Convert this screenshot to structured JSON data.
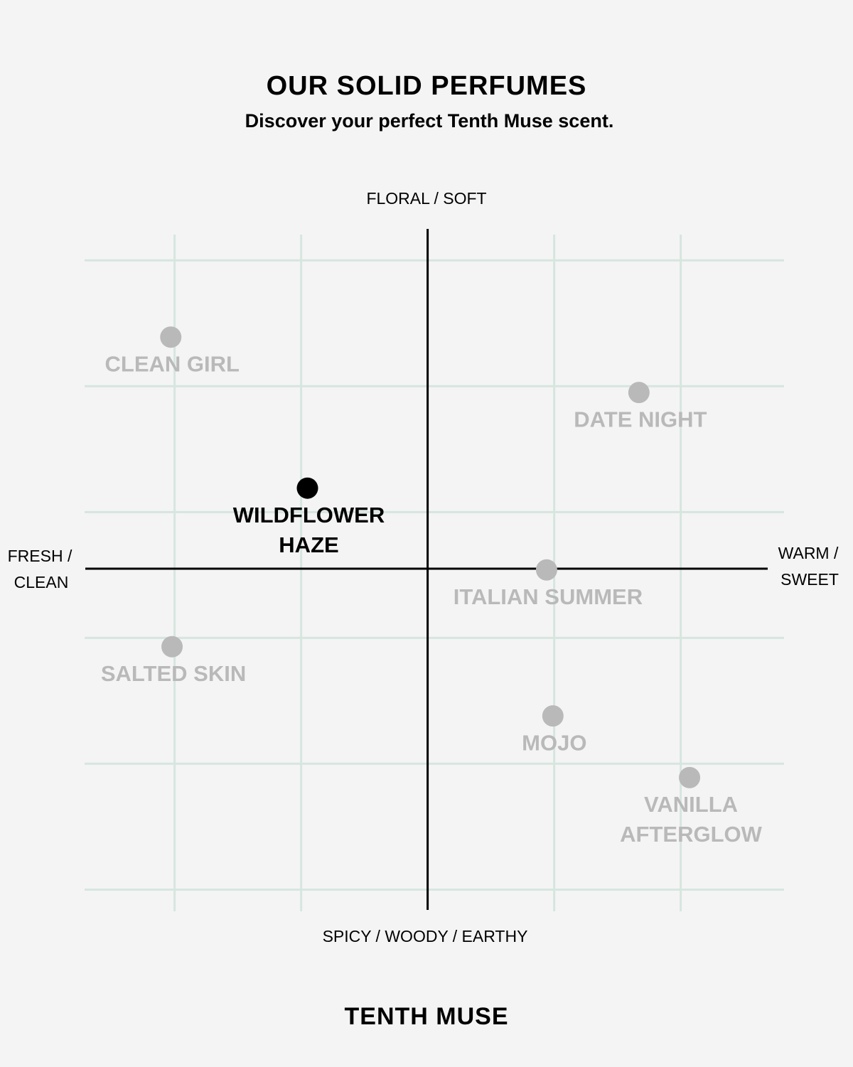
{
  "chart_data": {
    "type": "scatter",
    "title": "OUR SOLID PERFUMES",
    "subtitle": "Discover your perfect Tenth Muse scent.",
    "footer": "TENTH MUSE",
    "top_label": "FLORAL / SOFT",
    "bottom_label": "SPICY / WOODY / EARTHY",
    "left_label": [
      "FRESH /",
      "CLEAN"
    ],
    "right_label": [
      "WARM /",
      "SWEET"
    ],
    "xlim": [
      -2.7,
      2.8
    ],
    "ylim": [
      -2.7,
      2.7
    ],
    "xticks": [
      -2,
      -1,
      1,
      2
    ],
    "yticks": [
      2.45,
      1.45,
      0.45,
      -0.55,
      -1.55,
      -2.55
    ],
    "grid": true,
    "grid_color": "#d6e6df",
    "points": [
      {
        "label": [
          "CLEAN GIRL"
        ],
        "x": -2.03,
        "y": 1.84,
        "color": "#b9b9b9"
      },
      {
        "label": [
          "DATE NIGHT"
        ],
        "x": 1.67,
        "y": 1.4,
        "color": "#b9b9b9"
      },
      {
        "label": [
          "WILDFLOWER",
          "HAZE"
        ],
        "x": -0.95,
        "y": 0.64,
        "color": "#000000"
      },
      {
        "label": [
          "ITALIAN SUMMER"
        ],
        "x": 0.94,
        "y": -0.01,
        "color": "#b9b9b9"
      },
      {
        "label": [
          "SALTED SKIN"
        ],
        "x": -2.02,
        "y": -0.62,
        "color": "#b9b9b9"
      },
      {
        "label": [
          "MOJO"
        ],
        "x": 0.99,
        "y": -1.17,
        "color": "#b9b9b9"
      },
      {
        "label": [
          "VANILLA",
          "AFTERGLOW"
        ],
        "x": 2.07,
        "y": -1.66,
        "color": "#b9b9b9"
      }
    ]
  }
}
